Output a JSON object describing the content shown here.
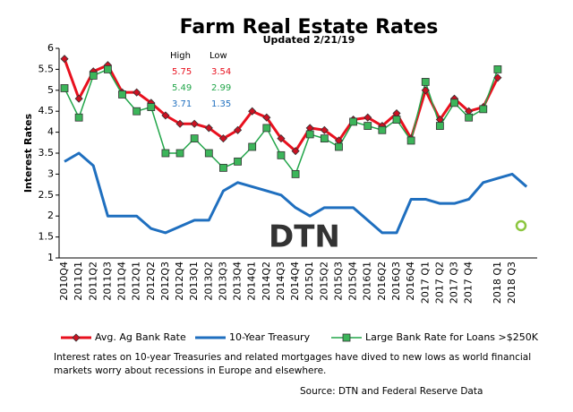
{
  "chart_data": {
    "type": "line",
    "title": "Farm Real Estate Rates",
    "subtitle": "Updated  2/21/19",
    "y_label": "Interest Rates",
    "categories": [
      "2010Q4",
      "2011Q1",
      "2011Q2",
      "2011Q3",
      "2011Q4",
      "2012Q1",
      "2012Q2",
      "2012Q3",
      "2012Q4",
      "2013Q1",
      "2013Q2",
      "2013Q3",
      "2013Q4",
      "2014Q1",
      "2014Q2",
      "2014Q3",
      "2014Q4",
      "2015Q1",
      "2015Q2",
      "2015Q3",
      "2015Q4",
      "2016Q1",
      "2016Q2",
      "2016Q3",
      "2016Q4",
      "2017 Q1",
      "2017 Q2",
      "2017 Q3",
      "2017 Q4",
      null,
      "2018 Q1",
      "2018 Q3",
      null
    ],
    "series": [
      {
        "name": "Avg. Ag Bank Rate",
        "color": "#e8101e",
        "marker": "diamond",
        "marker_color": "#cc1122",
        "values": [
          5.75,
          4.8,
          5.45,
          5.6,
          4.95,
          4.95,
          4.7,
          4.4,
          4.2,
          4.2,
          4.1,
          3.85,
          4.05,
          4.5,
          4.35,
          3.85,
          3.55,
          4.1,
          4.05,
          3.8,
          4.3,
          4.35,
          4.15,
          4.45,
          3.85,
          5.0,
          4.3,
          4.8,
          4.5,
          4.6,
          5.3,
          null,
          null
        ]
      },
      {
        "name": "10-Year Treasury",
        "color": "#1f6fbf",
        "marker": "none",
        "values": [
          3.3,
          3.5,
          3.2,
          2.0,
          2.0,
          2.0,
          1.7,
          1.6,
          1.75,
          1.9,
          1.9,
          2.6,
          2.8,
          2.7,
          2.6,
          2.5,
          2.2,
          2.0,
          2.2,
          2.2,
          2.2,
          1.9,
          1.6,
          1.6,
          2.4,
          2.4,
          2.3,
          2.3,
          2.4,
          2.8,
          2.9,
          3.0,
          2.7
        ]
      },
      {
        "name": "Large Bank Rate for Loans >$250K",
        "color": "#22a64a",
        "marker": "square",
        "marker_color": "#3cb55a",
        "values": [
          5.05,
          4.35,
          5.35,
          5.5,
          4.9,
          4.5,
          4.6,
          3.5,
          3.5,
          3.85,
          3.5,
          3.15,
          3.3,
          3.65,
          4.1,
          3.45,
          3.0,
          3.95,
          3.85,
          3.65,
          4.25,
          4.15,
          4.05,
          4.3,
          3.8,
          5.2,
          4.15,
          4.7,
          4.35,
          4.55,
          5.5,
          null,
          null
        ]
      }
    ],
    "ylim": [
      1,
      6
    ],
    "yticks": [
      1,
      1.5,
      2,
      2.5,
      3,
      3.5,
      4,
      4.5,
      5,
      5.5,
      6
    ],
    "high_low": {
      "headers": [
        "High",
        "Low"
      ],
      "rows": [
        [
          5.75,
          3.54
        ],
        [
          5.49,
          2.99
        ],
        [
          3.71,
          1.35
        ]
      ]
    },
    "logo": "DTN",
    "note": "Interest rates on 10-year Treasuries and related mortgages have dived to new lows as world financial markets worry about recessions in Europe and elsewhere.",
    "source": "Source: DTN  and Federal Reserve Data"
  }
}
